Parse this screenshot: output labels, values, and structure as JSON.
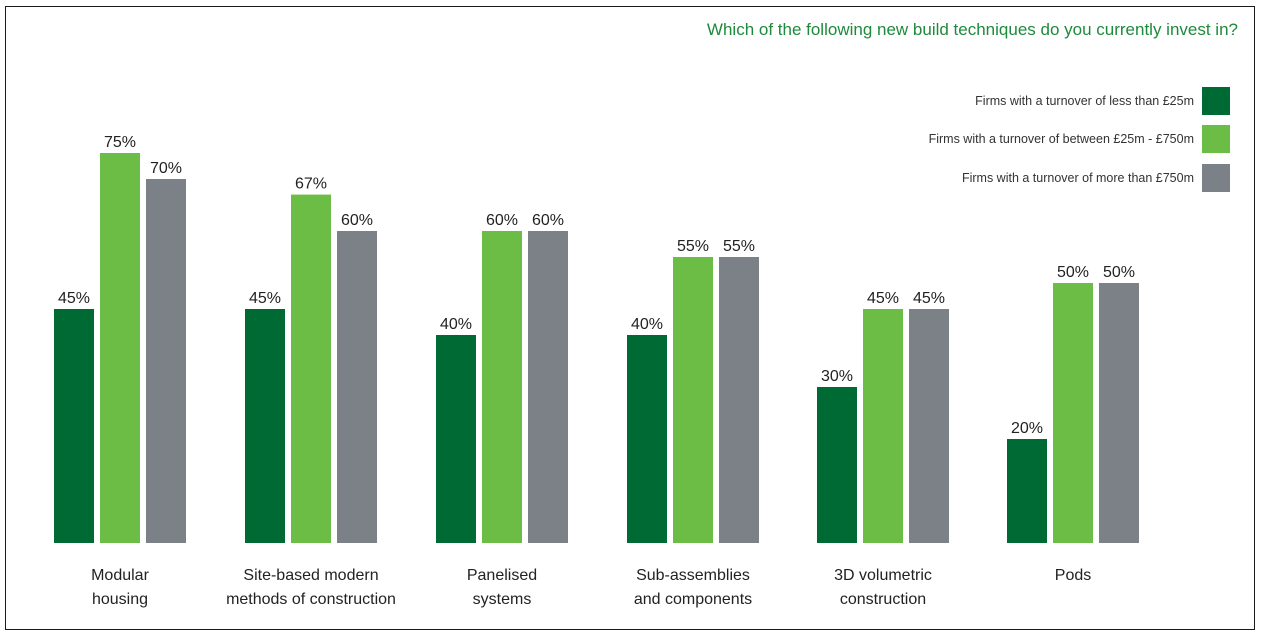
{
  "chart_data": {
    "type": "bar",
    "title": "Which of the following new build techniques do you currently invest in?",
    "categories": [
      [
        "Modular",
        "housing"
      ],
      [
        "Site-based modern",
        "methods of construction"
      ],
      [
        "Panelised",
        "systems"
      ],
      [
        "Sub-assemblies",
        "and components"
      ],
      [
        "3D volumetric",
        "construction"
      ],
      [
        "Pods"
      ]
    ],
    "series": [
      {
        "name": "Firms with a turnover of less than £25m",
        "color": "#006a35",
        "values": [
          45,
          45,
          40,
          40,
          30,
          20
        ]
      },
      {
        "name": "Firms with a turnover of between £25m - £750m",
        "color": "#6cbd45",
        "values": [
          75,
          67,
          60,
          55,
          45,
          50
        ]
      },
      {
        "name": "Firms with a turnover of more than £750m",
        "color": "#7b8186",
        "values": [
          70,
          60,
          60,
          55,
          45,
          50
        ]
      }
    ],
    "value_suffix": "%",
    "ylim": [
      0,
      100
    ],
    "grid": false,
    "legend_position": "top-right"
  }
}
